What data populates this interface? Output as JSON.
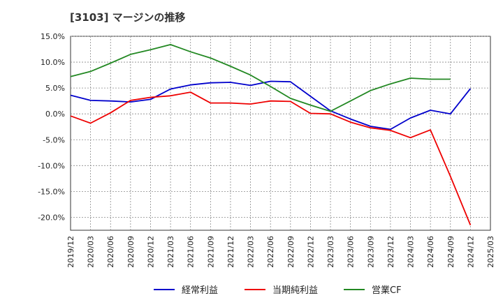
{
  "chart_data": {
    "type": "line",
    "title": "[3103]  マージンの推移",
    "x": [
      "2019/12",
      "2020/03",
      "2020/06",
      "2020/09",
      "2020/12",
      "2021/03",
      "2021/06",
      "2021/09",
      "2021/12",
      "2022/03",
      "2022/06",
      "2022/09",
      "2022/12",
      "2023/03",
      "2023/06",
      "2023/09",
      "2023/12",
      "2024/03",
      "2024/06",
      "2024/09",
      "2024/12",
      "2025/03"
    ],
    "ylim": [
      -22.5,
      15.0
    ],
    "yticks": [
      "15.0%",
      "10.0%",
      "5.0%",
      "0.0%",
      "-5.0%",
      "-10.0%",
      "-15.0%",
      "-20.0%"
    ],
    "ytick_values": [
      15,
      10,
      5,
      0,
      -5,
      -10,
      -15,
      -20
    ],
    "grid": true,
    "legend_position": "bottom",
    "series": [
      {
        "name": "経常利益",
        "color": "#0000cc",
        "values": [
          3.6,
          2.6,
          2.5,
          2.3,
          2.8,
          4.8,
          5.6,
          6.0,
          6.1,
          5.5,
          6.3,
          6.2,
          3.4,
          0.6,
          -1.0,
          -2.4,
          -3.0,
          -0.8,
          0.7,
          0.0,
          4.9,
          null
        ]
      },
      {
        "name": "当期純利益",
        "color": "#ee0000",
        "values": [
          -0.4,
          -1.8,
          0.2,
          2.6,
          3.2,
          3.5,
          4.2,
          2.1,
          2.1,
          1.9,
          2.5,
          2.4,
          0.1,
          0.0,
          -1.6,
          -2.7,
          -3.2,
          -4.6,
          -3.1,
          -12.1,
          -21.5,
          null
        ]
      },
      {
        "name": "営業CF",
        "color": "#228822",
        "values": [
          7.2,
          8.2,
          9.8,
          11.5,
          12.4,
          13.4,
          12.0,
          10.8,
          9.2,
          7.5,
          5.3,
          3.0,
          1.7,
          0.5,
          2.5,
          4.5,
          5.8,
          6.9,
          6.7,
          6.7,
          null,
          null
        ]
      }
    ]
  }
}
